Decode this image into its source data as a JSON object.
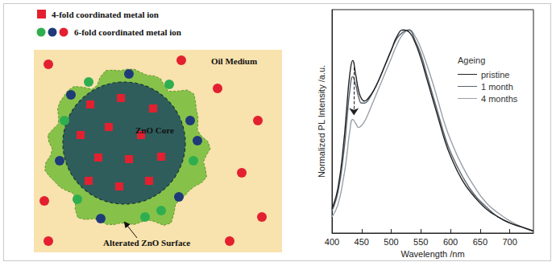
{
  "diagram": {
    "legend": [
      {
        "marker": "square",
        "label": "4-fold coordinated metal ion"
      },
      {
        "marker": "circles",
        "label": "6-fold coordinated metal ion"
      }
    ],
    "labels": {
      "medium": "Oil Medium",
      "core": "ZnO Core",
      "surface": "Alterated ZnO Surface"
    }
  },
  "chart_data": {
    "type": "line",
    "x_label": "Wavelength /nm",
    "y_label": "Normalized PL Intensity /a.u.",
    "legend_title": "Ageing",
    "legend": "upper right",
    "tick_labels": "x",
    "grid": false,
    "xlim": [
      400,
      740
    ],
    "xticks": [
      400,
      450,
      500,
      550,
      600,
      650,
      700
    ],
    "ylim": [
      0,
      1.1
    ],
    "x": [
      400,
      410,
      420,
      425,
      430,
      435,
      440,
      445,
      450,
      455,
      460,
      470,
      480,
      490,
      500,
      510,
      520,
      530,
      540,
      550,
      560,
      570,
      580,
      590,
      600,
      620,
      640,
      660,
      680,
      700,
      720,
      740
    ],
    "series": [
      {
        "name": "pristine",
        "color": "#222222",
        "values": [
          0.12,
          0.22,
          0.45,
          0.62,
          0.78,
          0.85,
          0.78,
          0.7,
          0.66,
          0.65,
          0.66,
          0.7,
          0.76,
          0.83,
          0.9,
          0.97,
          1.0,
          0.99,
          0.94,
          0.86,
          0.76,
          0.66,
          0.56,
          0.46,
          0.38,
          0.26,
          0.18,
          0.12,
          0.08,
          0.05,
          0.03,
          0.01
        ]
      },
      {
        "name": "1 month",
        "color": "#5a6470",
        "values": [
          0.11,
          0.2,
          0.4,
          0.55,
          0.7,
          0.77,
          0.73,
          0.67,
          0.64,
          0.64,
          0.65,
          0.7,
          0.76,
          0.83,
          0.9,
          0.96,
          0.99,
          1.0,
          0.95,
          0.88,
          0.78,
          0.68,
          0.58,
          0.48,
          0.4,
          0.28,
          0.19,
          0.13,
          0.08,
          0.05,
          0.03,
          0.01
        ]
      },
      {
        "name": "4 months",
        "color": "#9aa0a8",
        "values": [
          0.08,
          0.14,
          0.28,
          0.38,
          0.5,
          0.56,
          0.54,
          0.52,
          0.53,
          0.55,
          0.58,
          0.65,
          0.72,
          0.79,
          0.86,
          0.93,
          0.98,
          1.0,
          0.97,
          0.91,
          0.83,
          0.74,
          0.64,
          0.54,
          0.46,
          0.33,
          0.23,
          0.15,
          0.1,
          0.06,
          0.03,
          0.01
        ]
      }
    ],
    "annotations": [
      {
        "type": "arrow",
        "x": 437,
        "y_start": 0.84,
        "y_end": 0.58
      }
    ]
  }
}
